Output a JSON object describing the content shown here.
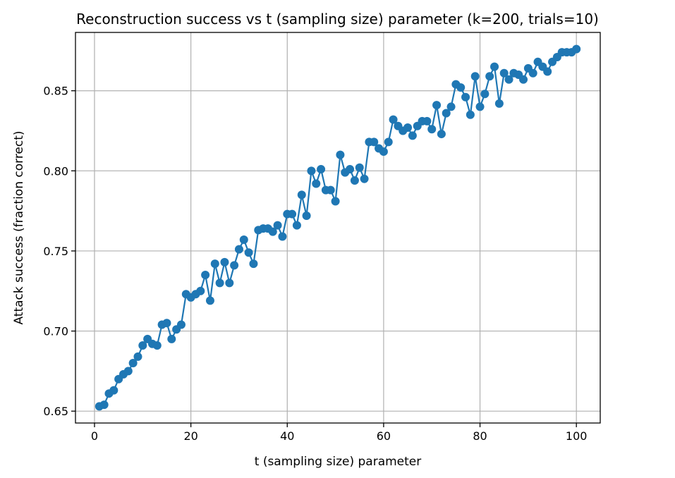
{
  "chart_data": {
    "type": "line",
    "title": "Reconstruction success vs t (sampling size) parameter (k=200, trials=10)",
    "xlabel": "t (sampling size) parameter",
    "ylabel": "Attack success (fraction correct)",
    "xlim": [
      -3.95,
      104.95
    ],
    "ylim": [
      0.6426,
      0.8864
    ],
    "xticks": [
      0,
      20,
      40,
      60,
      80,
      100
    ],
    "yticks": [
      0.65,
      0.7,
      0.75,
      0.8,
      0.85
    ],
    "xtick_labels": [
      "0",
      "20",
      "40",
      "60",
      "80",
      "100"
    ],
    "ytick_labels": [
      "0.65",
      "0.70",
      "0.75",
      "0.80",
      "0.85"
    ],
    "grid": true,
    "marker": "circle",
    "color": "#1f77b4",
    "series": [
      {
        "x": [
          1,
          2,
          3,
          4,
          5,
          6,
          7,
          8,
          9,
          10,
          11,
          12,
          13,
          14,
          15,
          16,
          17,
          18,
          19,
          20,
          21,
          22,
          23,
          24,
          25,
          26,
          27,
          28,
          29,
          30,
          31,
          32,
          33,
          34,
          35,
          36,
          37,
          38,
          39,
          40,
          41,
          42,
          43,
          44,
          45,
          46,
          47,
          48,
          49,
          50,
          51,
          52,
          53,
          54,
          55,
          56,
          57,
          58,
          59,
          60,
          61,
          62,
          63,
          64,
          65,
          66,
          67,
          68,
          69,
          70,
          71,
          72,
          73,
          74,
          75,
          76,
          77,
          78,
          79,
          80,
          81,
          82,
          83,
          84,
          85,
          86,
          87,
          88,
          89,
          90,
          91,
          92,
          93,
          94,
          95,
          96,
          97,
          98,
          99,
          100
        ],
        "values": [
          0.653,
          0.654,
          0.661,
          0.663,
          0.67,
          0.673,
          0.675,
          0.68,
          0.684,
          0.691,
          0.695,
          0.692,
          0.691,
          0.704,
          0.705,
          0.695,
          0.701,
          0.704,
          0.723,
          0.721,
          0.723,
          0.725,
          0.735,
          0.719,
          0.742,
          0.73,
          0.743,
          0.73,
          0.741,
          0.751,
          0.757,
          0.749,
          0.742,
          0.763,
          0.764,
          0.764,
          0.762,
          0.766,
          0.759,
          0.773,
          0.773,
          0.766,
          0.785,
          0.772,
          0.8,
          0.792,
          0.801,
          0.788,
          0.788,
          0.781,
          0.81,
          0.799,
          0.801,
          0.794,
          0.802,
          0.795,
          0.818,
          0.818,
          0.814,
          0.812,
          0.818,
          0.832,
          0.828,
          0.825,
          0.827,
          0.822,
          0.828,
          0.831,
          0.831,
          0.826,
          0.841,
          0.823,
          0.836,
          0.84,
          0.854,
          0.852,
          0.846,
          0.835,
          0.859,
          0.84,
          0.848,
          0.859,
          0.865,
          0.842,
          0.861,
          0.857,
          0.861,
          0.86,
          0.857,
          0.864,
          0.861,
          0.868,
          0.865,
          0.862,
          0.868,
          0.871,
          0.874,
          0.874,
          0.874,
          0.876
        ]
      }
    ]
  }
}
